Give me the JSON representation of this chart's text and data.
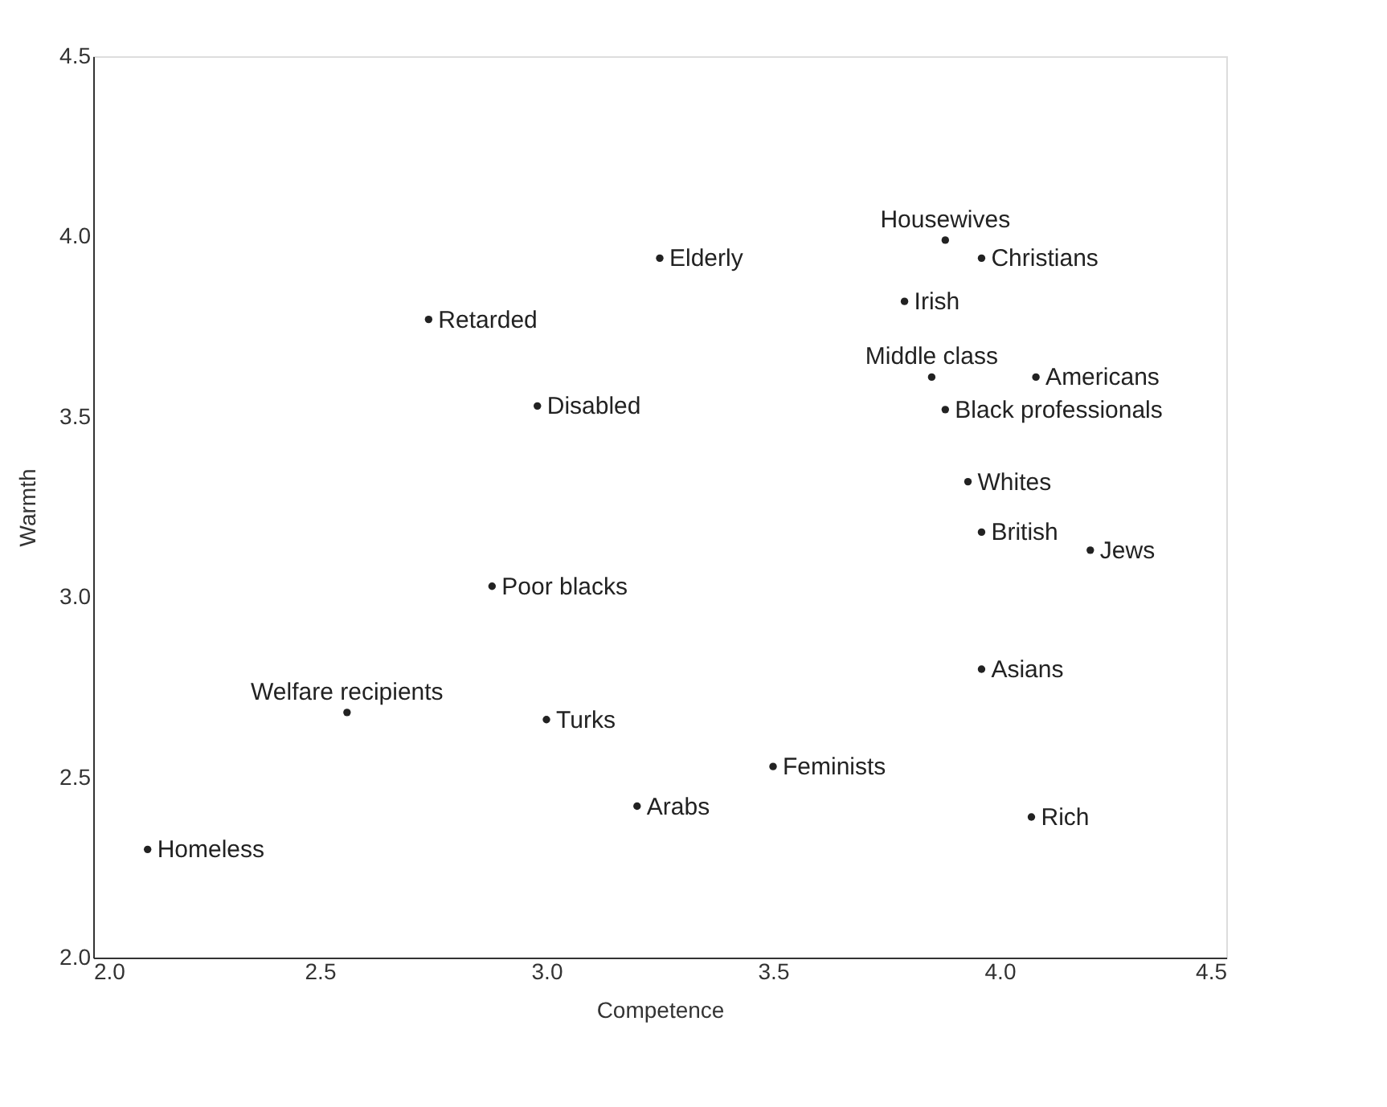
{
  "chart_data": {
    "type": "scatter",
    "xlabel": "Competence",
    "ylabel": "Warmth",
    "x": [
      3.25,
      2.74,
      2.98,
      3.88,
      3.96,
      3.79,
      3.85,
      4.08,
      3.88,
      3.93,
      3.96,
      4.2,
      3.96,
      4.07,
      2.88,
      2.56,
      3.0,
      3.5,
      3.2,
      2.12
    ],
    "series": [
      {
        "color": "#222222",
        "values": [
          3.94,
          3.77,
          3.53,
          3.99,
          3.94,
          3.82,
          3.61,
          3.61,
          3.52,
          3.32,
          3.18,
          3.13,
          2.8,
          2.39,
          3.03,
          2.68,
          2.66,
          2.53,
          2.42,
          2.3
        ]
      }
    ],
    "annotations": [
      {
        "text": "Elderly",
        "x": 3.25,
        "y": 3.94
      },
      {
        "text": "Retarded",
        "x": 2.74,
        "y": 3.77
      },
      {
        "text": "Disabled",
        "x": 2.98,
        "y": 3.53
      },
      {
        "text": "Housewives",
        "x": 3.88,
        "y": 3.99
      },
      {
        "text": "Christians",
        "x": 3.96,
        "y": 3.94
      },
      {
        "text": "Irish",
        "x": 3.79,
        "y": 3.82
      },
      {
        "text": "Middle class",
        "x": 3.85,
        "y": 3.61
      },
      {
        "text": "Americans",
        "x": 4.08,
        "y": 3.61
      },
      {
        "text": "Black professionals",
        "x": 3.88,
        "y": 3.52
      },
      {
        "text": "Whites",
        "x": 3.93,
        "y": 3.32
      },
      {
        "text": "British",
        "x": 3.96,
        "y": 3.18
      },
      {
        "text": "Jews",
        "x": 4.2,
        "y": 3.13
      },
      {
        "text": "Asians",
        "x": 3.96,
        "y": 2.8
      },
      {
        "text": "Rich",
        "x": 4.07,
        "y": 2.39
      },
      {
        "text": "Poor blacks",
        "x": 2.88,
        "y": 3.03
      },
      {
        "text": "Welfare recipients",
        "x": 2.56,
        "y": 2.68
      },
      {
        "text": "Turks",
        "x": 3.0,
        "y": 2.66
      },
      {
        "text": "Feminists",
        "x": 3.5,
        "y": 2.53
      },
      {
        "text": "Arabs",
        "x": 3.2,
        "y": 2.42
      },
      {
        "text": "Homeless",
        "x": 2.12,
        "y": 2.3
      }
    ],
    "xlim": [
      2.0,
      4.5
    ],
    "xticks": [
      {
        "value": 2.0,
        "label": "2.0"
      },
      {
        "value": 2.5,
        "label": "2.5"
      },
      {
        "value": 3.0,
        "label": "3.0"
      },
      {
        "value": 3.5,
        "label": "3.5"
      },
      {
        "value": 4.0,
        "label": "4.0"
      },
      {
        "value": 4.5,
        "label": "4.5"
      }
    ],
    "ylim": [
      2.0,
      4.5
    ],
    "yticks": [
      {
        "value": 2.0,
        "label": "2.0"
      },
      {
        "value": 2.5,
        "label": "2.5"
      },
      {
        "value": 3.0,
        "label": "3.0"
      },
      {
        "value": 3.5,
        "label": "3.5"
      },
      {
        "value": 4.0,
        "label": "4.0"
      },
      {
        "value": 4.5,
        "label": "4.5"
      }
    ],
    "grid": false,
    "marker": "circle"
  }
}
